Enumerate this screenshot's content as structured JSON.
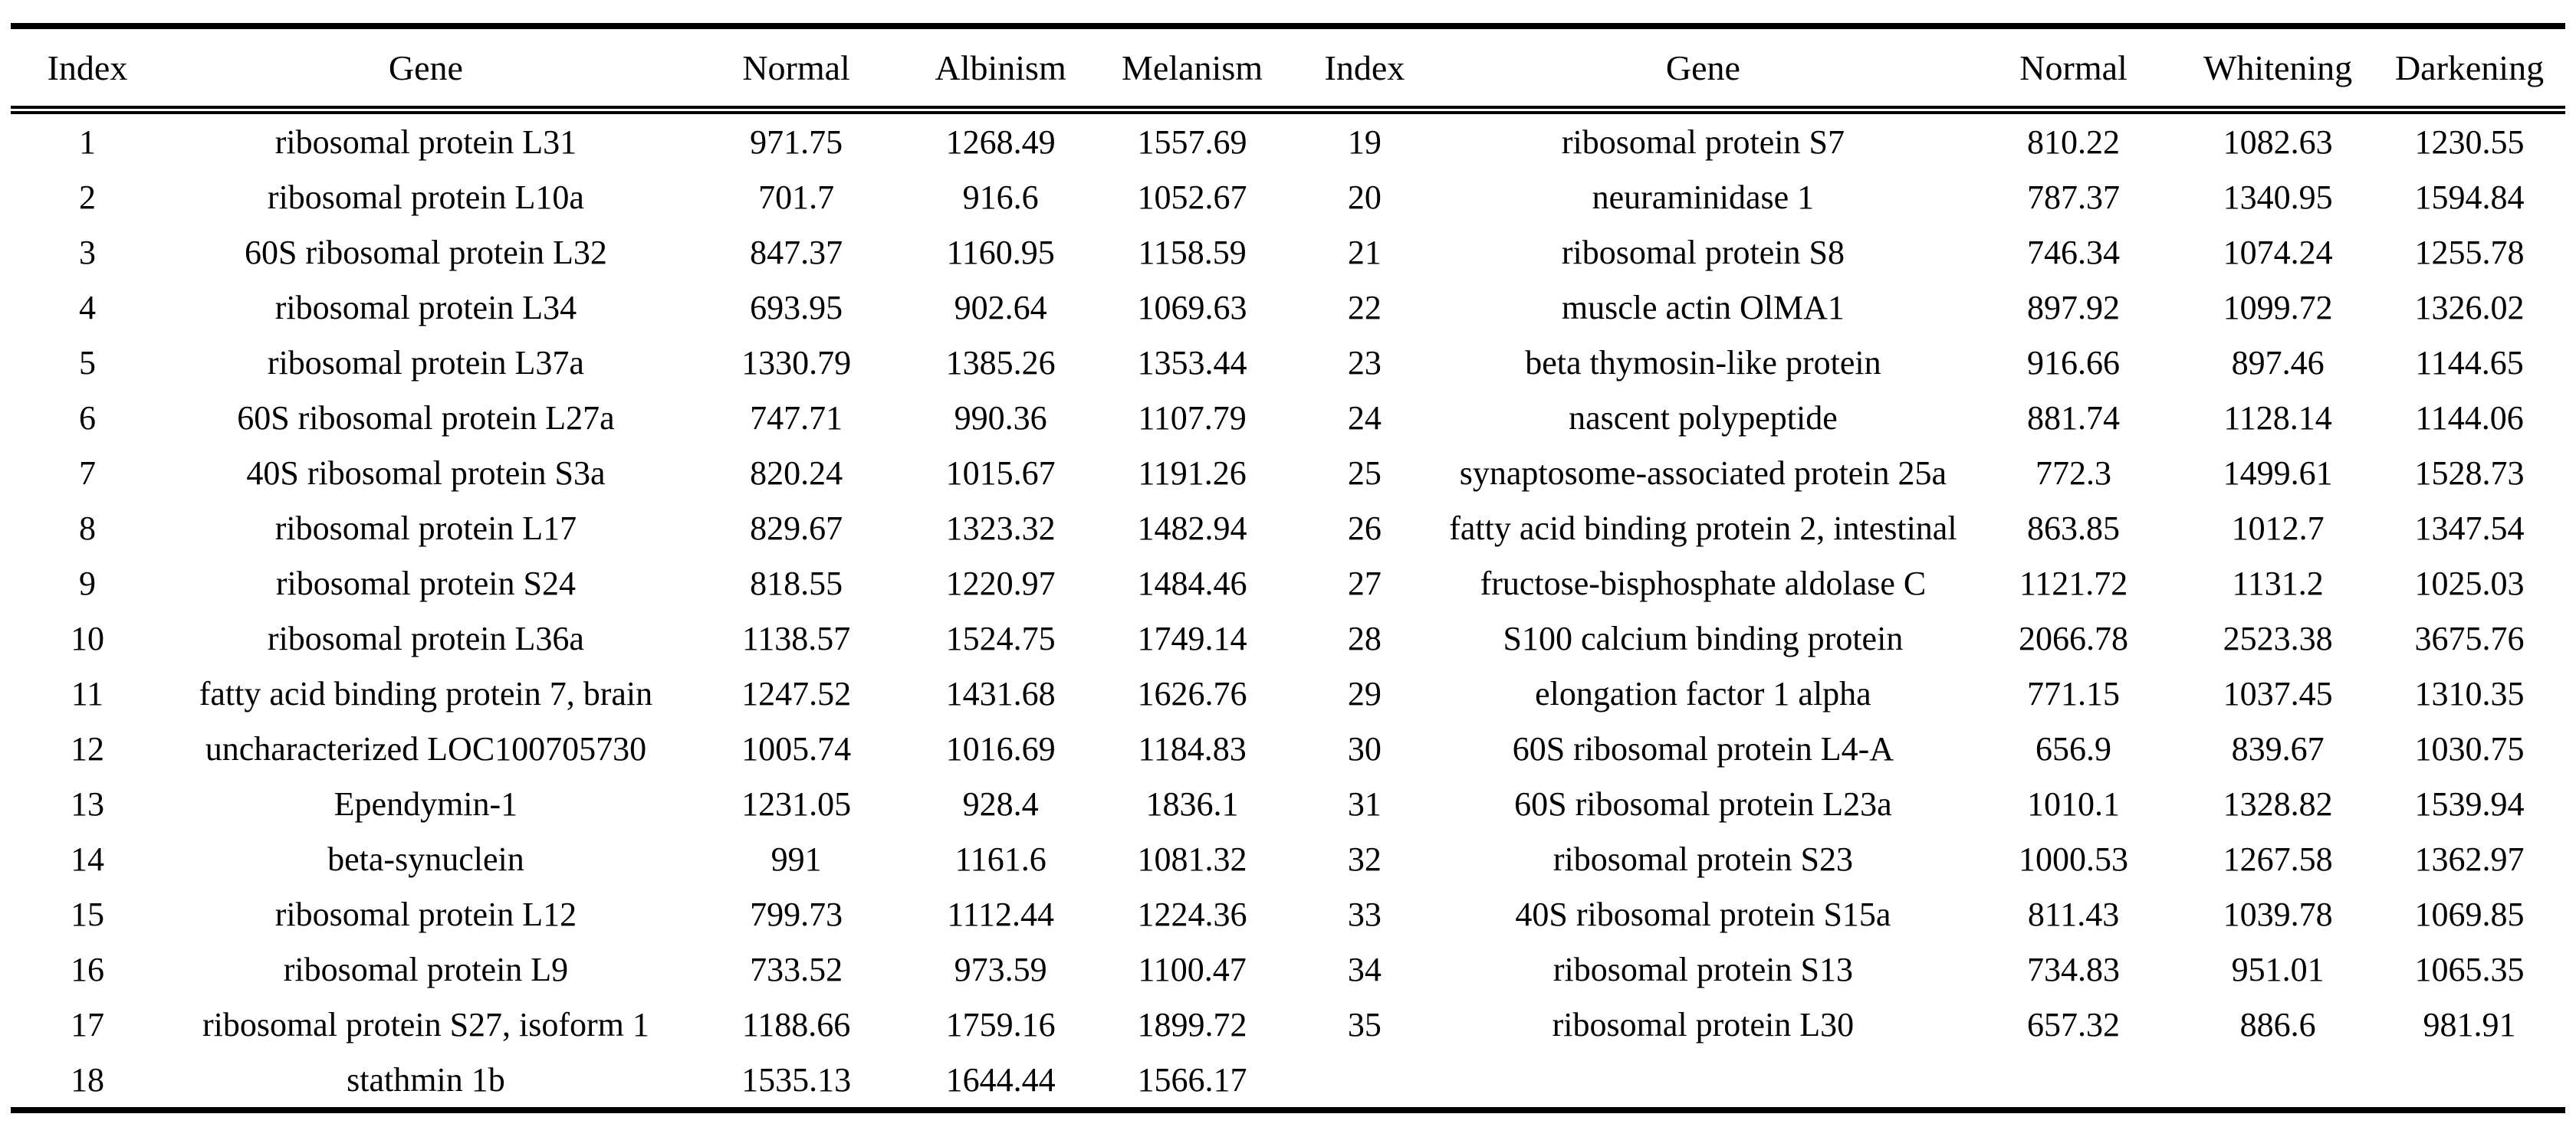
{
  "page": {
    "background_color": "#ffffff",
    "text_color": "#000000",
    "rule_color": "#000000"
  },
  "table": {
    "left": {
      "headers": [
        "Index",
        "Gene",
        "Normal",
        "Albinism",
        "Melanism"
      ],
      "rows": [
        [
          "1",
          "ribosomal protein L31",
          "971.75",
          "1268.49",
          "1557.69"
        ],
        [
          "2",
          "ribosomal protein L10a",
          "701.7",
          "916.6",
          "1052.67"
        ],
        [
          "3",
          "60S ribosomal protein L32",
          "847.37",
          "1160.95",
          "1158.59"
        ],
        [
          "4",
          "ribosomal protein L34",
          "693.95",
          "902.64",
          "1069.63"
        ],
        [
          "5",
          "ribosomal protein L37a",
          "1330.79",
          "1385.26",
          "1353.44"
        ],
        [
          "6",
          "60S ribosomal protein L27a",
          "747.71",
          "990.36",
          "1107.79"
        ],
        [
          "7",
          "40S ribosomal protein S3a",
          "820.24",
          "1015.67",
          "1191.26"
        ],
        [
          "8",
          "ribosomal protein L17",
          "829.67",
          "1323.32",
          "1482.94"
        ],
        [
          "9",
          "ribosomal protein S24",
          "818.55",
          "1220.97",
          "1484.46"
        ],
        [
          "10",
          "ribosomal protein L36a",
          "1138.57",
          "1524.75",
          "1749.14"
        ],
        [
          "11",
          "fatty acid binding protein 7, brain",
          "1247.52",
          "1431.68",
          "1626.76"
        ],
        [
          "12",
          "uncharacterized LOC100705730",
          "1005.74",
          "1016.69",
          "1184.83"
        ],
        [
          "13",
          "Ependymin-1",
          "1231.05",
          "928.4",
          "1836.1"
        ],
        [
          "14",
          "beta-synuclein",
          "991",
          "1161.6",
          "1081.32"
        ],
        [
          "15",
          "ribosomal protein L12",
          "799.73",
          "1112.44",
          "1224.36"
        ],
        [
          "16",
          "ribosomal protein L9",
          "733.52",
          "973.59",
          "1100.47"
        ],
        [
          "17",
          "ribosomal protein S27, isoform 1",
          "1188.66",
          "1759.16",
          "1899.72"
        ],
        [
          "18",
          "stathmin 1b",
          "1535.13",
          "1644.44",
          "1566.17"
        ]
      ]
    },
    "right": {
      "headers": [
        "Index",
        "Gene",
        "Normal",
        "Whitening",
        "Darkening"
      ],
      "rows": [
        [
          "19",
          "ribosomal protein S7",
          "810.22",
          "1082.63",
          "1230.55"
        ],
        [
          "20",
          "neuraminidase 1",
          "787.37",
          "1340.95",
          "1594.84"
        ],
        [
          "21",
          "ribosomal protein S8",
          "746.34",
          "1074.24",
          "1255.78"
        ],
        [
          "22",
          "muscle actin OlMA1",
          "897.92",
          "1099.72",
          "1326.02"
        ],
        [
          "23",
          "beta thymosin-like protein",
          "916.66",
          "897.46",
          "1144.65"
        ],
        [
          "24",
          "nascent polypeptide",
          "881.74",
          "1128.14",
          "1144.06"
        ],
        [
          "25",
          "synaptosome-associated protein 25a",
          "772.3",
          "1499.61",
          "1528.73"
        ],
        [
          "26",
          "fatty acid binding protein 2, intestinal",
          "863.85",
          "1012.7",
          "1347.54"
        ],
        [
          "27",
          "fructose-bisphosphate aldolase C",
          "1121.72",
          "1131.2",
          "1025.03"
        ],
        [
          "28",
          "S100 calcium binding protein",
          "2066.78",
          "2523.38",
          "3675.76"
        ],
        [
          "29",
          "elongation factor 1 alpha",
          "771.15",
          "1037.45",
          "1310.35"
        ],
        [
          "30",
          "60S ribosomal protein L4-A",
          "656.9",
          "839.67",
          "1030.75"
        ],
        [
          "31",
          "60S ribosomal protein L23a",
          "1010.1",
          "1328.82",
          "1539.94"
        ],
        [
          "32",
          "ribosomal protein S23",
          "1000.53",
          "1267.58",
          "1362.97"
        ],
        [
          "33",
          "40S ribosomal protein S15a",
          "811.43",
          "1039.78",
          "1069.85"
        ],
        [
          "34",
          "ribosomal protein S13",
          "734.83",
          "951.01",
          "1065.35"
        ],
        [
          "35",
          "ribosomal protein L30",
          "657.32",
          "886.6",
          "981.91"
        ]
      ]
    }
  }
}
